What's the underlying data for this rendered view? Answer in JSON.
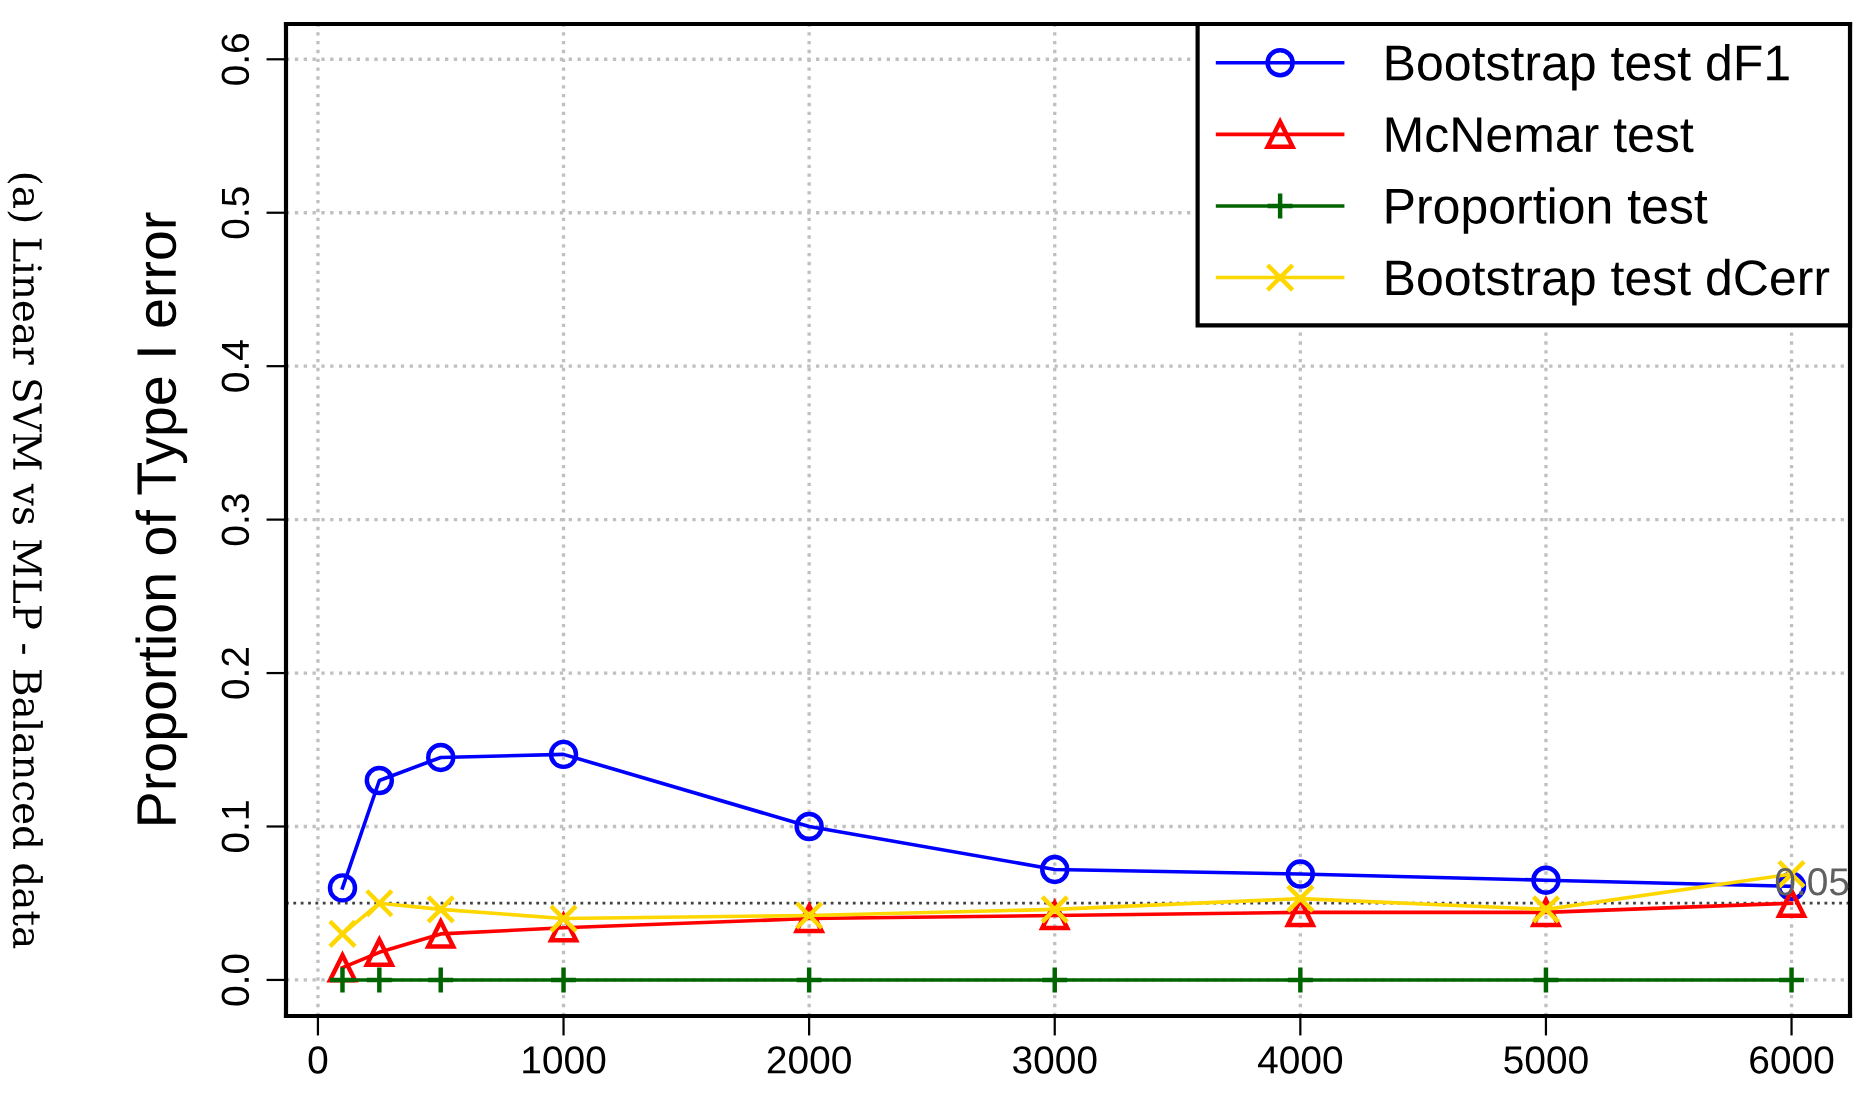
{
  "chart_data": {
    "type": "line",
    "ylabel": "Proportion of Type I error",
    "annotations": [
      "(a) Linear SVM vs MLP - Balanced data"
    ],
    "x": [
      100,
      250,
      500,
      1000,
      2000,
      3000,
      4000,
      5000,
      6000
    ],
    "series": [
      {
        "name": "Bootstrap test dF1",
        "color": "#0000ff",
        "marker": "circle",
        "values": [
          0.06,
          0.13,
          0.145,
          0.147,
          0.1,
          0.072,
          0.069,
          0.065,
          0.061
        ]
      },
      {
        "name": "McNemar test",
        "color": "#ff0000",
        "marker": "triangle",
        "values": [
          0.008,
          0.018,
          0.03,
          0.034,
          0.04,
          0.042,
          0.044,
          0.044,
          0.05
        ]
      },
      {
        "name": "Proportion test",
        "color": "#006400",
        "marker": "plus",
        "values": [
          0,
          0,
          0,
          0,
          0,
          0,
          0,
          0,
          0
        ]
      },
      {
        "name": "Bootstrap test dCerr",
        "color": "#ffd700",
        "marker": "cross",
        "values": [
          0.03,
          0.05,
          0.046,
          0.04,
          0.042,
          0.046,
          0.053,
          0.046,
          0.069
        ]
      }
    ],
    "xlim": [
      -130,
      6238
    ],
    "ylim": [
      -0.0235,
      0.623
    ],
    "xticks": [
      0,
      1000,
      2000,
      3000,
      4000,
      5000,
      6000
    ],
    "yticks": [
      {
        "value": 0,
        "label": "0.0"
      },
      0.1,
      0.2,
      0.3,
      0.4,
      0.5,
      0.6
    ],
    "ref_lines": [
      {
        "axis": "y",
        "value": 0.05,
        "label": "0.05",
        "color": "#404040",
        "line_style": "dotted"
      }
    ],
    "grid": true,
    "legend": "top right",
    "line_style": "solid"
  }
}
